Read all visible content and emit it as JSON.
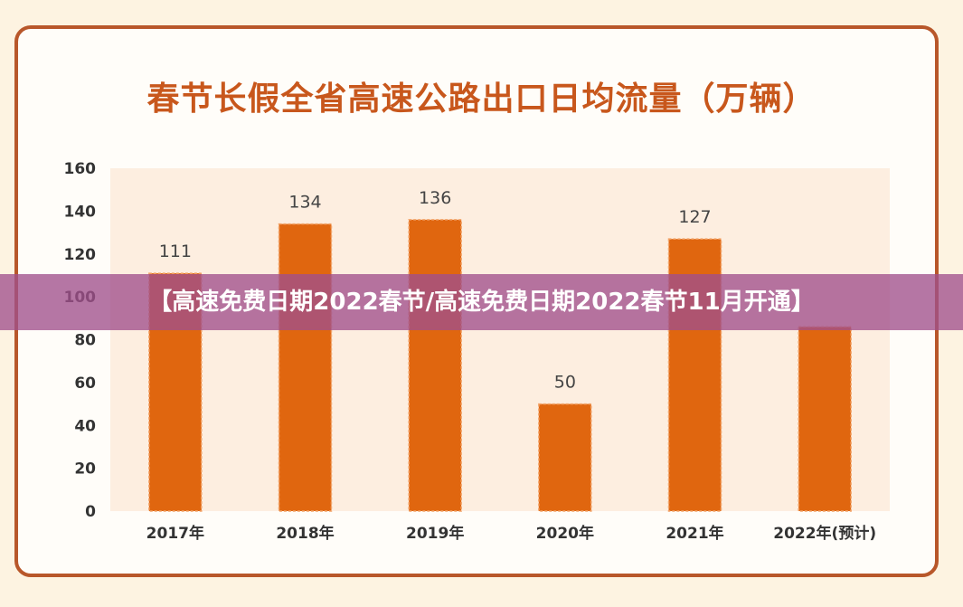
{
  "chart_data": {
    "type": "bar",
    "title": "春节长假全省高速公路出口日均流量（万辆）",
    "categories": [
      "2017年",
      "2018年",
      "2019年",
      "2020年",
      "2021年",
      "2022年(预计)"
    ],
    "values": [
      111,
      134,
      136,
      50,
      127,
      86
    ],
    "data_labels": [
      "111",
      "134",
      "136",
      "50",
      "127",
      ""
    ],
    "ylim": [
      0,
      160
    ],
    "yticks": [
      0,
      20,
      40,
      60,
      80,
      100,
      120,
      140,
      160
    ],
    "grid": false,
    "colors": {
      "bar": "#e0660f",
      "plot_bg": "#fdeee0",
      "title": "#c8571c",
      "frame": "#b8572a"
    }
  },
  "banner": {
    "text": "【高速免费日期2022春节/高速免费日期2022春节11月开通】"
  }
}
